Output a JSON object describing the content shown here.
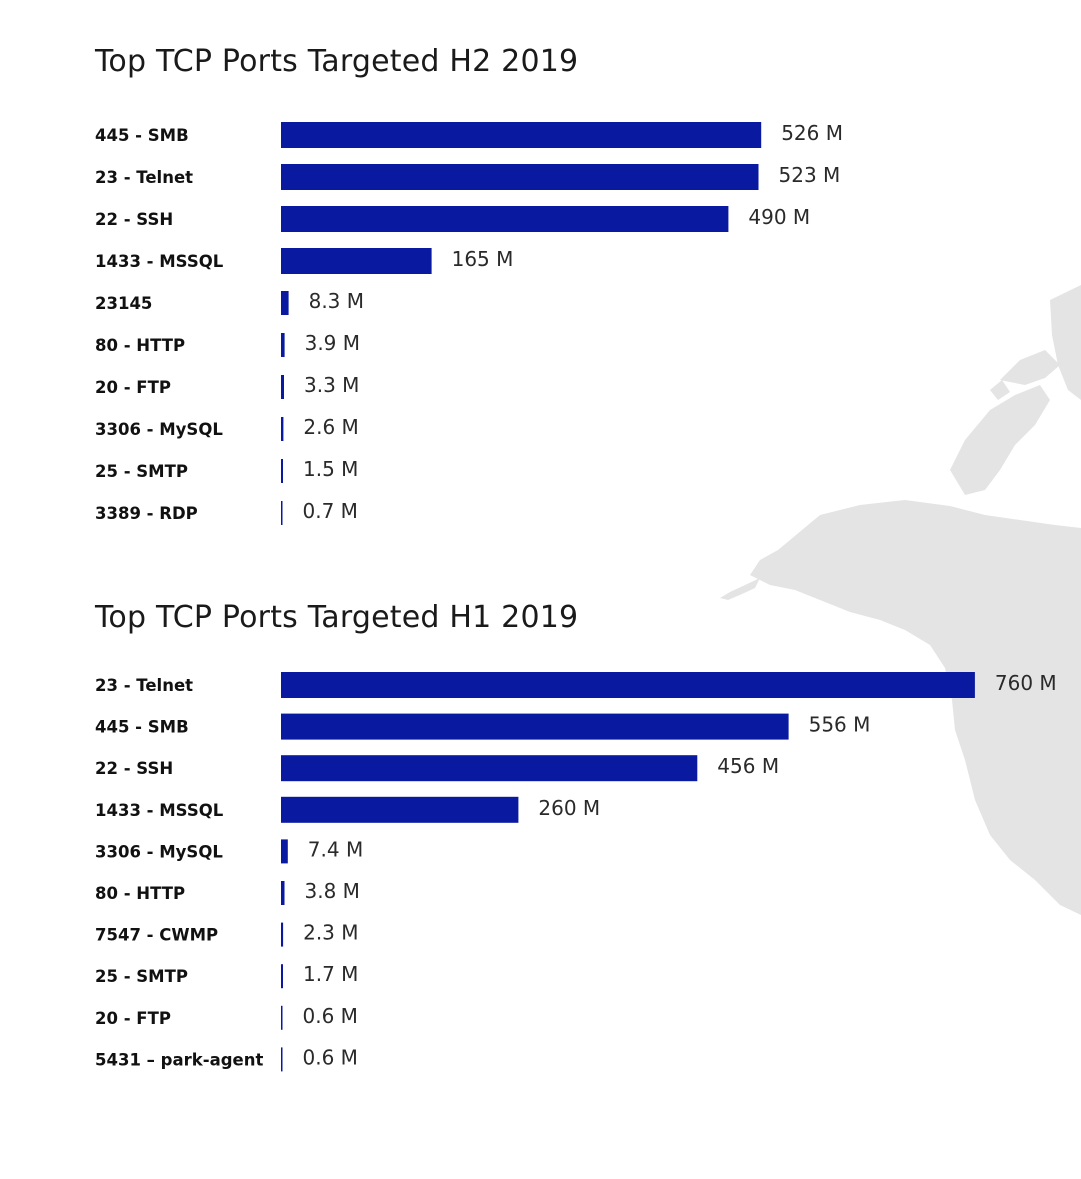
{
  "colors": {
    "bar": "#0a1aa0",
    "map": "#e4e4e4",
    "title": "#1a1a1a"
  },
  "chart_data": [
    {
      "type": "bar",
      "orientation": "horizontal",
      "title": "Top TCP Ports Targeted H2 2019",
      "categories": [
        "445 - SMB",
        "23 - Telnet",
        "22 - SSH",
        "1433 - MSSQL",
        "23145",
        "80 - HTTP",
        "20 - FTP",
        "3306 - MySQL",
        "25 - SMTP",
        "3389 - RDP"
      ],
      "values": [
        526,
        523,
        490,
        165,
        8.3,
        3.9,
        3.3,
        2.6,
        1.5,
        0.7
      ],
      "value_labels": [
        "526 M",
        "523 M",
        "490 M",
        "165 M",
        "8.3 M",
        "3.9 M",
        "3.3 M",
        "2.6 M",
        "1.5 M",
        "0.7 M"
      ],
      "unit": "M",
      "xlim": [
        0,
        760
      ]
    },
    {
      "type": "bar",
      "orientation": "horizontal",
      "title": "Top TCP Ports Targeted H1 2019",
      "categories": [
        "23 - Telnet",
        "445 - SMB",
        "22 - SSH",
        "1433 - MSSQL",
        "3306 - MySQL",
        "80 - HTTP",
        "7547 - CWMP",
        "25 - SMTP",
        "20 - FTP",
        "5431 – park-agent"
      ],
      "values": [
        760,
        556,
        456,
        260,
        7.4,
        3.8,
        2.3,
        1.7,
        0.6,
        0.6
      ],
      "value_labels": [
        "760 M",
        "556 M",
        "456 M",
        "260 M",
        "7.4 M",
        "3.8 M",
        "2.3 M",
        "1.7 M",
        "0.6 M",
        "0.6 M"
      ],
      "unit": "M",
      "xlim": [
        0,
        760
      ]
    }
  ]
}
